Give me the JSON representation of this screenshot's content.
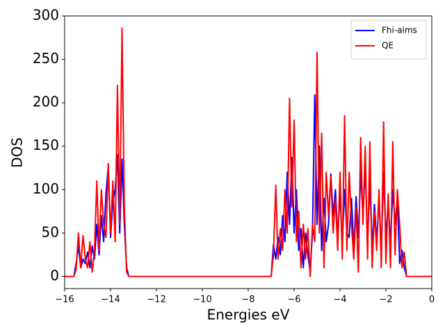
{
  "chart_data": {
    "type": "line",
    "xlabel": "Energies eV",
    "ylabel": "DOS",
    "x": [
      -16,
      -15.6,
      -15.5,
      -15.4,
      -15.3,
      -15.2,
      -15.1,
      -15.0,
      -14.9,
      -14.8,
      -14.7,
      -14.6,
      -14.5,
      -14.4,
      -14.3,
      -14.2,
      -14.1,
      -14.0,
      -13.9,
      -13.8,
      -13.7,
      -13.6,
      -13.5,
      -13.4,
      -13.3,
      -13.2,
      -13,
      -12,
      -11,
      -10,
      -9,
      -8,
      -7.2,
      -7.0,
      -6.9,
      -6.8,
      -6.7,
      -6.6,
      -6.5,
      -6.4,
      -6.3,
      -6.2,
      -6.1,
      -6.0,
      -5.9,
      -5.8,
      -5.7,
      -5.6,
      -5.5,
      -5.4,
      -5.3,
      -5.2,
      -5.1,
      -5.0,
      -4.9,
      -4.8,
      -4.7,
      -4.6,
      -4.5,
      -4.4,
      -4.3,
      -4.2,
      -4.1,
      -4.0,
      -3.9,
      -3.8,
      -3.7,
      -3.6,
      -3.5,
      -3.4,
      -3.3,
      -3.2,
      -3.1,
      -3.0,
      -2.9,
      -2.8,
      -2.7,
      -2.6,
      -2.5,
      -2.4,
      -2.3,
      -2.2,
      -2.1,
      -2.0,
      -1.9,
      -1.8,
      -1.7,
      -1.6,
      -1.5,
      -1.4,
      -1.3,
      -1.2,
      -1.1,
      -1.0,
      -0.5,
      0
    ],
    "series": [
      {
        "name": "Fhi-aims",
        "color": "#0000ff",
        "values": [
          0,
          0,
          15,
          35,
          10,
          20,
          15,
          28,
          10,
          35,
          20,
          60,
          25,
          70,
          40,
          95,
          127,
          45,
          85,
          100,
          140,
          50,
          135,
          60,
          10,
          0,
          0,
          0,
          0,
          0,
          0,
          0,
          0,
          0,
          37,
          20,
          45,
          25,
          70,
          40,
          120,
          60,
          137,
          50,
          100,
          30,
          55,
          10,
          50,
          25,
          5,
          50,
          209,
          60,
          150,
          30,
          90,
          40,
          60,
          118,
          70,
          100,
          45,
          95,
          40,
          100,
          50,
          45,
          90,
          30,
          92,
          45,
          120,
          70,
          125,
          40,
          110,
          30,
          83,
          40,
          90,
          30,
          120,
          45,
          85,
          40,
          100,
          60,
          90,
          15,
          30,
          10,
          0,
          0,
          0,
          0
        ]
      },
      {
        "name": "QE",
        "color": "#ff0000",
        "values": [
          0,
          0,
          8,
          50,
          10,
          47,
          20,
          10,
          40,
          5,
          30,
          110,
          30,
          100,
          60,
          45,
          130,
          50,
          110,
          40,
          220,
          60,
          286,
          80,
          5,
          0,
          0,
          0,
          0,
          0,
          0,
          0,
          0,
          0,
          25,
          105,
          20,
          55,
          30,
          100,
          50,
          205,
          80,
          180,
          40,
          75,
          10,
          60,
          20,
          55,
          0,
          60,
          40,
          258,
          50,
          165,
          10,
          120,
          70,
          115,
          50,
          90,
          30,
          120,
          20,
          185,
          30,
          120,
          60,
          20,
          80,
          5,
          160,
          60,
          150,
          20,
          155,
          10,
          75,
          30,
          100,
          10,
          178,
          15,
          95,
          10,
          155,
          25,
          100,
          60,
          10,
          28,
          0,
          0,
          0,
          0
        ]
      }
    ],
    "xlim": [
      -16,
      0
    ],
    "ylim": [
      -14,
      300
    ],
    "xticks": [
      {
        "value": -16,
        "label": "−16"
      },
      {
        "value": -14,
        "label": "−14"
      },
      {
        "value": -12,
        "label": "−12"
      },
      {
        "value": -10,
        "label": "−10"
      },
      {
        "value": -8,
        "label": "−8"
      },
      {
        "value": -6,
        "label": "−6"
      },
      {
        "value": -4,
        "label": "−4"
      },
      {
        "value": -2,
        "label": "−2"
      },
      0
    ],
    "yticks": [
      0,
      50,
      100,
      150,
      200,
      250,
      300
    ],
    "legend": "upper right"
  }
}
